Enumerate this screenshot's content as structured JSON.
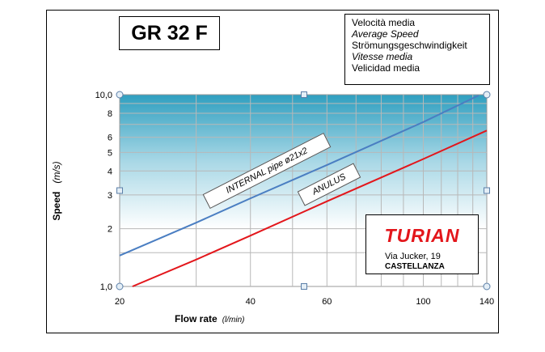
{
  "chart_data": {
    "type": "line",
    "title": "GR 32 F",
    "xlabel": "Flow rate",
    "xlabel_unit": "(l/min)",
    "ylabel": "Speed",
    "ylabel_unit": "(m/s)",
    "x_scale": "log",
    "y_scale": "log",
    "xlim": [
      20,
      140
    ],
    "ylim": [
      1,
      10
    ],
    "x_ticks": [
      20,
      40,
      60,
      100,
      140
    ],
    "x_tick_labels": [
      "20",
      "40",
      "60",
      "100",
      "140"
    ],
    "y_ticks": [
      1,
      2,
      3,
      4,
      5,
      6,
      8,
      10
    ],
    "y_tick_labels": [
      "1,0",
      "2",
      "3",
      "4",
      "5",
      "6",
      "8",
      "10,0"
    ],
    "grid": true,
    "series": [
      {
        "name": "INTERNAL pipe ø21x2",
        "color": "#4a7ec2",
        "points": [
          [
            20,
            1.45
          ],
          [
            30,
            2.15
          ],
          [
            40,
            2.88
          ],
          [
            60,
            4.3
          ],
          [
            100,
            7.2
          ],
          [
            134,
            9.9
          ]
        ]
      },
      {
        "name": "ANULUS",
        "color": "#e3161b",
        "points": [
          [
            21.4,
            1.0
          ],
          [
            30,
            1.38
          ],
          [
            40,
            1.84
          ],
          [
            60,
            2.78
          ],
          [
            100,
            4.62
          ],
          [
            140,
            6.5
          ]
        ]
      }
    ]
  },
  "legend": {
    "lines": [
      "Velocità media",
      "Average Speed",
      "Strömungsgeschwindigkeit",
      "Vitesse media",
      "Velicidad media"
    ]
  },
  "brand": {
    "name": "TURIAN",
    "address": "Via Jucker, 19",
    "city": "CASTELLANZA",
    "color": "#e3161b"
  }
}
